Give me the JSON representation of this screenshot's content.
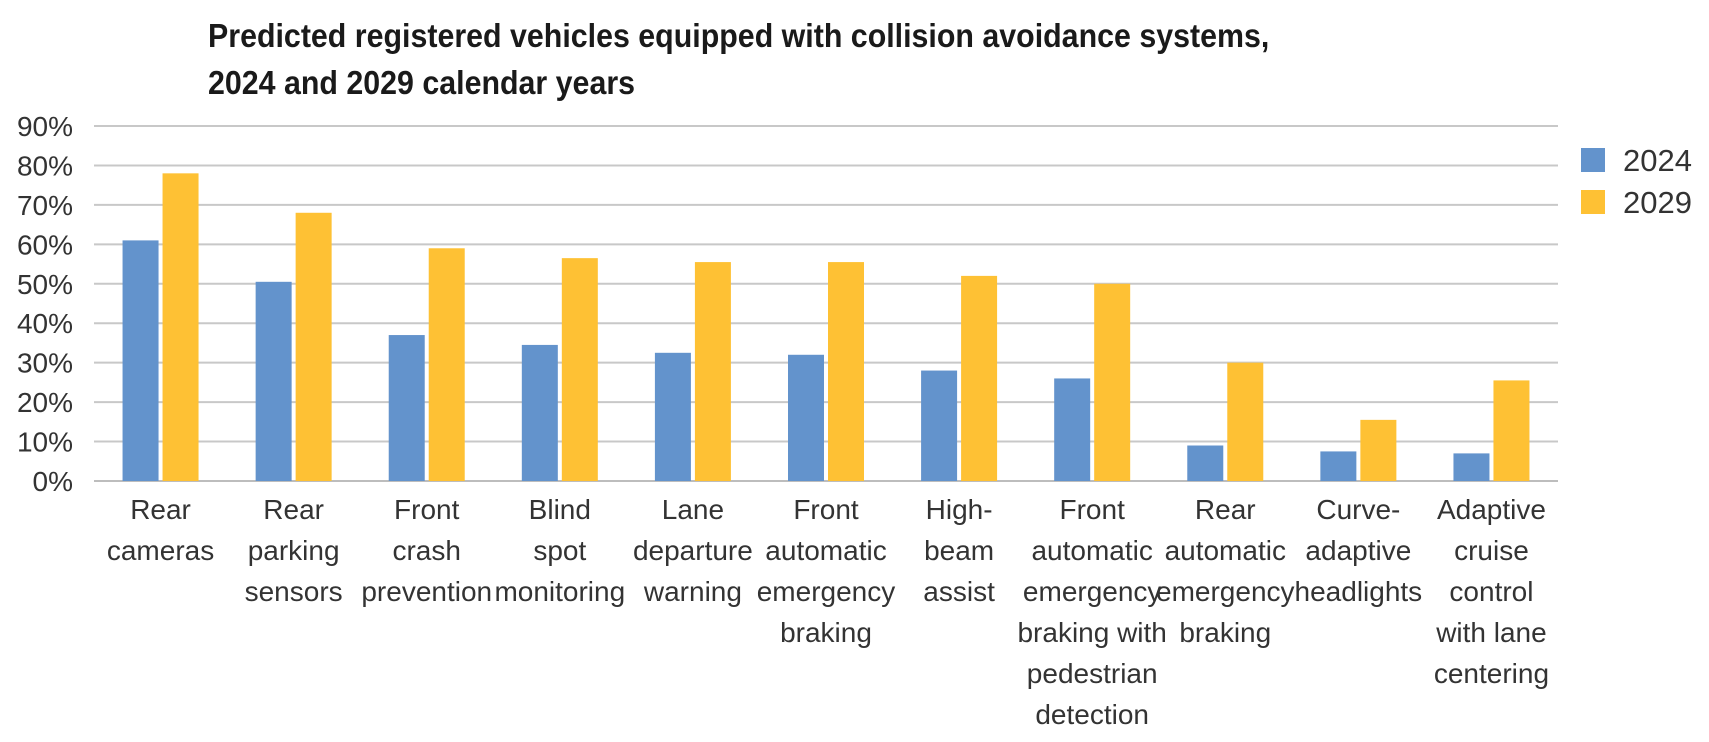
{
  "chart_data": {
    "type": "bar",
    "title_lines": [
      "Predicted registered vehicles equipped with collision avoidance systems,",
      "2024 and 2029 calendar years"
    ],
    "xlabel": "",
    "ylabel": "",
    "ylim": [
      0,
      90
    ],
    "y_ticks": [
      0,
      10,
      20,
      30,
      40,
      50,
      60,
      70,
      80,
      90
    ],
    "y_tick_suffix": "%",
    "grid": true,
    "legend_position": "right",
    "categories": [
      [
        "Rear",
        "cameras"
      ],
      [
        "Rear",
        "parking",
        "sensors"
      ],
      [
        "Front",
        "crash",
        "prevention"
      ],
      [
        "Blind",
        "spot",
        "monitoring"
      ],
      [
        "Lane",
        "departure",
        "warning"
      ],
      [
        "Front",
        "automatic",
        "emergency",
        "braking"
      ],
      [
        "High-",
        "beam",
        "assist"
      ],
      [
        "Front",
        "automatic",
        "emergency",
        "braking with",
        "pedestrian",
        "detection"
      ],
      [
        "Rear",
        "automatic",
        "emergency",
        "braking"
      ],
      [
        "Curve-",
        "adaptive",
        "headlights"
      ],
      [
        "Adaptive",
        "cruise",
        "control",
        "with lane",
        "centering"
      ]
    ],
    "series": [
      {
        "name": "2024",
        "color": "#6393cc",
        "values": [
          61,
          50.5,
          37,
          34.5,
          32.5,
          32,
          28,
          26,
          9,
          7.5,
          7
        ]
      },
      {
        "name": "2029",
        "color": "#fec134",
        "values": [
          78,
          68,
          59,
          56.5,
          55.5,
          55.5,
          52,
          50,
          30,
          15.5,
          25.5
        ]
      }
    ],
    "colors": {
      "grid": "#c8c8c8",
      "axis": "#bdbdbd"
    }
  }
}
